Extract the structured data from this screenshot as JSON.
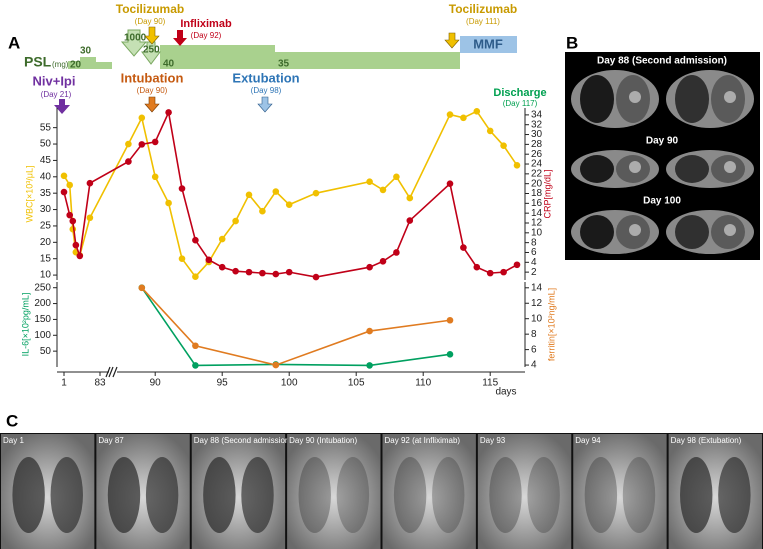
{
  "panel_a": {
    "letter": "A",
    "psl": {
      "label": "PSL",
      "unit": "(mg)",
      "doses": [
        "20",
        "30",
        "1000",
        "250",
        "40",
        "35"
      ],
      "mmf": "MMF"
    },
    "events": [
      {
        "name": "Tocilizumab",
        "day": "(Day 90)"
      },
      {
        "name": "Infliximab",
        "day": "(Day 92)"
      },
      {
        "name": "Tocilizumab",
        "day": "(Day 111)"
      },
      {
        "name": "Niv+Ipi",
        "day": "(Day 21)"
      },
      {
        "name": "Intubation",
        "day": "(Day 90)"
      },
      {
        "name": "Extubation",
        "day": "(Day 98)"
      },
      {
        "name": "Discharge",
        "day": "(Day 117)"
      }
    ]
  },
  "chart_data": [
    {
      "type": "line",
      "x": [
        1,
        14,
        21,
        28,
        37,
        60,
        88,
        89,
        90,
        91,
        92,
        93,
        94,
        95,
        96,
        97,
        98,
        99,
        100,
        102,
        106,
        107,
        108,
        109,
        112,
        113,
        114,
        115,
        116,
        117
      ],
      "xlim": [
        1,
        117
      ],
      "xbreak": [
        83,
        87
      ],
      "ylabel": "WBC[×10³/μL]",
      "y2label": "CRP[mg/dL]",
      "ylim": [
        8.5,
        61
      ],
      "yticks": [
        10,
        15,
        20,
        25,
        30,
        35,
        40,
        45,
        50,
        55
      ],
      "y2lim": [
        0.4,
        35.4
      ],
      "y2ticks": [
        2,
        4,
        6,
        8,
        10,
        12,
        14,
        16,
        18,
        20,
        22,
        24,
        26,
        28,
        30,
        32,
        34
      ],
      "series": [
        {
          "color": "#f0c000",
          "values": [
            40.3,
            37.5,
            24,
            17,
            16,
            27.5,
            50,
            58,
            40,
            32,
            15,
            9.5,
            14,
            21,
            26.5,
            34.5,
            29.5,
            35.5,
            31.5,
            35,
            38.5,
            36,
            40,
            33.5,
            59,
            58,
            60,
            54,
            49.5,
            43.5
          ]
        },
        {
          "color": "#c00018",
          "axis": "y2",
          "values": [
            18.3,
            13.6,
            12.4,
            7.5,
            5.3,
            20.1,
            24.5,
            28,
            28.5,
            34.5,
            19,
            8.5,
            4.5,
            3,
            2.2,
            2,
            1.8,
            1.6,
            2,
            1,
            3,
            4.2,
            6,
            12.5,
            20,
            7,
            3,
            1.8,
            2,
            3.5
          ]
        }
      ]
    },
    {
      "type": "line",
      "x": [
        89,
        93,
        99,
        106,
        112
      ],
      "xlim": [
        1,
        117
      ],
      "xbreak": [
        83,
        87
      ],
      "xticks": [
        1,
        83,
        90,
        95,
        100,
        105,
        110,
        115
      ],
      "xlabel": "days",
      "ylabel": "IL-6[×10²pg/mL]",
      "y2label": "ferritin[×10²ng/mL]",
      "ylim": [
        0,
        268
      ],
      "yticks": [
        50,
        100,
        150,
        200,
        250
      ],
      "y2lim": [
        3.75,
        14.75
      ],
      "y2ticks": [
        4,
        6,
        8,
        10,
        12,
        14
      ],
      "series": [
        {
          "color": "#00a060",
          "values": [
            250,
            5,
            8,
            5,
            40
          ]
        },
        {
          "color": "#e07b20",
          "axis": "y2",
          "values": [
            14,
            6.5,
            4,
            8.4,
            9.8
          ]
        }
      ]
    }
  ],
  "panel_b": {
    "letter": "B",
    "captions": [
      "Day 88 (Second admission)",
      "Day 90",
      "Day 100"
    ]
  },
  "panel_c": {
    "letter": "C",
    "captions": [
      "Day 1",
      "Day 87",
      "Day 88 (Second admission)",
      "Day 90 (Intubation)",
      "Day 92 (at Infliximab)",
      "Day 93",
      "Day 94",
      "Day 98 (Extubation)"
    ]
  }
}
